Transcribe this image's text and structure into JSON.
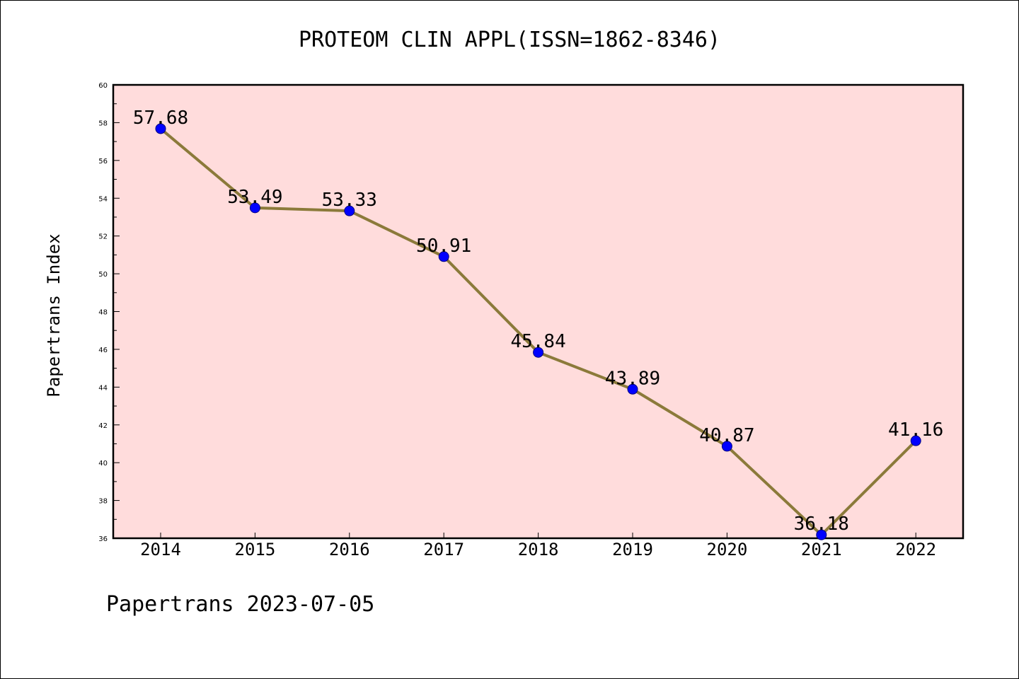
{
  "chart_data": {
    "type": "line",
    "title": "PROTEOM CLIN APPL(ISSN=1862-8346)",
    "ylabel": "Papertrans Index",
    "xlabel": "",
    "x": [
      "2014",
      "2015",
      "2016",
      "2017",
      "2018",
      "2019",
      "2020",
      "2021",
      "2022"
    ],
    "series": [
      {
        "values": [
          57.68,
          53.49,
          53.33,
          50.91,
          45.84,
          43.89,
          40.87,
          36.18,
          41.16
        ],
        "labels": [
          "57.68",
          "53.49",
          "53.33",
          "50.91",
          "45.84",
          "43.89",
          "40.87",
          "36.18",
          "41.16"
        ]
      }
    ],
    "ylim": [
      36,
      60
    ],
    "yticks": [
      36,
      38,
      40,
      42,
      44,
      46,
      48,
      50,
      52,
      54,
      56,
      58,
      60
    ],
    "ytick_labels": [
      "36",
      "38",
      "40",
      "42",
      "44",
      "46",
      "48",
      "50",
      "52",
      "54",
      "56",
      "58",
      "60"
    ],
    "grid": false,
    "colors": {
      "plot_background": "#ffdcdc",
      "line": "#8b7a3a",
      "marker_fill": "#0000ff",
      "marker_edge": "#000080"
    },
    "footer": "Papertrans 2023-07-05"
  }
}
